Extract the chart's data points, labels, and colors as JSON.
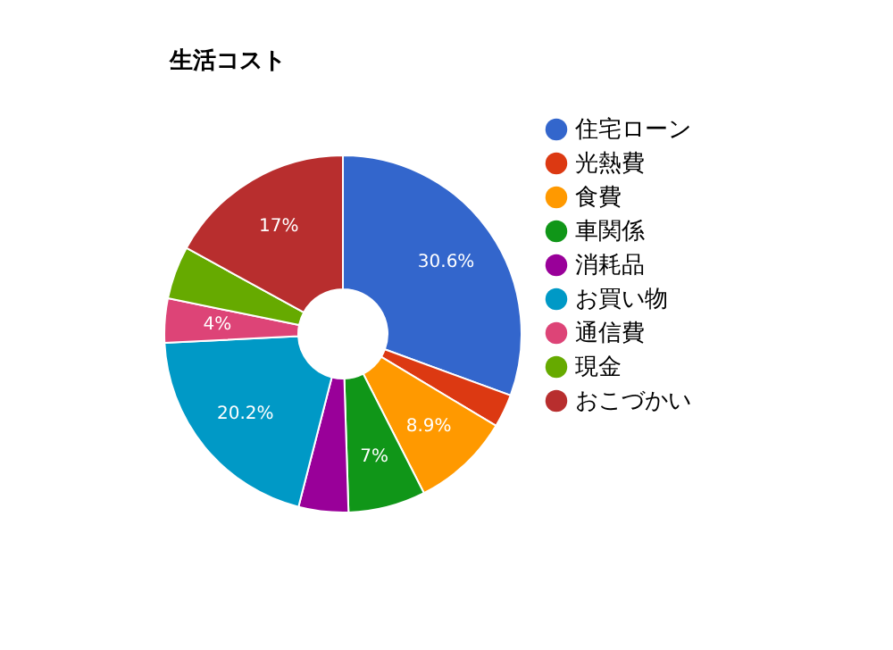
{
  "chart_data": {
    "type": "donut",
    "title": "生活コスト",
    "categories": [
      "住宅ローン",
      "光熱費",
      "食費",
      "車関係",
      "消耗品",
      "お買い物",
      "通信費",
      "現金",
      "おこづかい"
    ],
    "values": [
      30.6,
      3.0,
      8.9,
      7,
      4.5,
      20.2,
      4,
      4.8,
      17
    ],
    "value_labels": [
      "30.6%",
      null,
      "8.9%",
      "7%",
      null,
      "20.2%",
      "4%",
      null,
      "17%"
    ],
    "colors": [
      "#3366cc",
      "#dc3912",
      "#ff9900",
      "#109618",
      "#990099",
      "#0099c6",
      "#dd4477",
      "#66aa00",
      "#b82e2e"
    ],
    "legend": "right"
  }
}
